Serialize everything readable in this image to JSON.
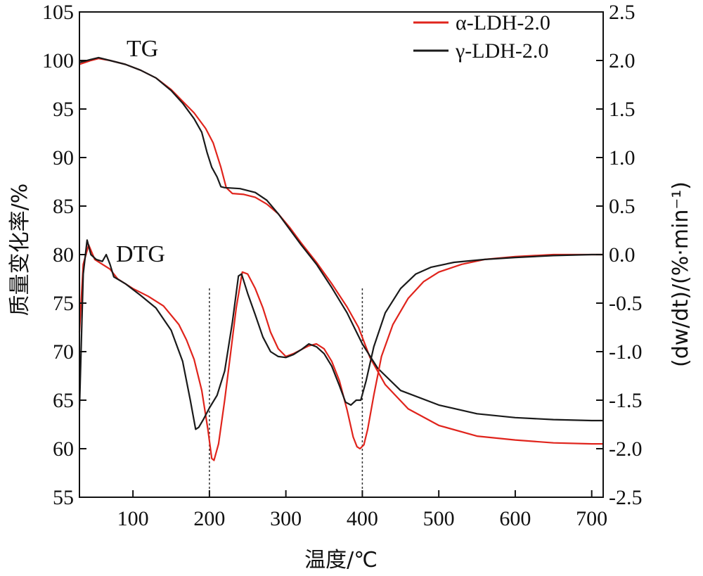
{
  "chart_data": {
    "type": "line",
    "xlabel": "温度/℃",
    "ylabel_left": "质量变化率/%",
    "ylabel_right": "(dw/dt)/(%·min⁻¹)",
    "xlim": [
      30,
      715
    ],
    "xticks": [
      "100",
      "200",
      "300",
      "400",
      "500",
      "600",
      "700"
    ],
    "ylim_left": [
      55,
      105
    ],
    "yticks_left": [
      "105",
      "100",
      "95",
      "90",
      "85",
      "80",
      "75",
      "70",
      "65",
      "60",
      "55"
    ],
    "ylim_right": [
      -2.5,
      2.5
    ],
    "yticks_right": [
      "2.5",
      "2.0",
      "1.5",
      "1.0",
      "0.5",
      "0.0",
      "-0.5",
      "-1.0",
      "-1.5",
      "-2.0",
      "-2.5"
    ],
    "annotations": [
      "TG",
      "DTG"
    ],
    "vlines": [
      200,
      400
    ],
    "legend": {
      "position": "top-right"
    },
    "series": [
      {
        "name": "α-LDH-2.0",
        "color": "#e0241c",
        "curve": "TG",
        "axis": "left",
        "x": [
          30,
          45,
          55,
          70,
          90,
          110,
          130,
          150,
          165,
          180,
          195,
          205,
          215,
          222,
          230,
          245,
          260,
          275,
          290,
          305,
          320,
          340,
          360,
          380,
          395,
          410,
          430,
          460,
          500,
          550,
          600,
          650,
          700,
          715
        ],
        "y": [
          99.6,
          100.0,
          100.2,
          100.0,
          99.6,
          99.0,
          98.2,
          97.0,
          95.8,
          94.6,
          93.0,
          91.5,
          89.0,
          86.9,
          86.3,
          86.2,
          85.9,
          85.2,
          84.2,
          82.8,
          81.2,
          79.2,
          77.0,
          74.6,
          72.5,
          69.4,
          66.6,
          64.1,
          62.4,
          61.3,
          60.9,
          60.6,
          60.5,
          60.5
        ]
      },
      {
        "name": "γ-LDH-2.0",
        "color": "#1a1a1a",
        "curve": "TG",
        "axis": "left",
        "x": [
          30,
          45,
          55,
          70,
          90,
          110,
          130,
          150,
          165,
          180,
          190,
          197,
          203,
          210,
          215,
          220,
          240,
          260,
          275,
          290,
          305,
          320,
          340,
          360,
          380,
          400,
          420,
          450,
          500,
          550,
          600,
          650,
          700,
          715
        ],
        "y": [
          99.8,
          100.1,
          100.3,
          100.0,
          99.6,
          99.0,
          98.2,
          96.9,
          95.6,
          94.0,
          92.6,
          90.5,
          89.0,
          88.0,
          87.0,
          86.9,
          86.8,
          86.4,
          85.6,
          84.2,
          82.6,
          81.0,
          79.0,
          76.6,
          74.0,
          70.8,
          68.3,
          66.0,
          64.5,
          63.6,
          63.2,
          63.0,
          62.9,
          62.9
        ]
      },
      {
        "name": "α-LDH-2.0",
        "color": "#e0241c",
        "curve": "DTG",
        "axis": "right",
        "x": [
          30,
          35,
          42,
          50,
          60,
          70,
          80,
          100,
          120,
          140,
          160,
          170,
          180,
          190,
          198,
          203,
          206,
          212,
          220,
          228,
          235,
          243,
          250,
          260,
          270,
          280,
          290,
          300,
          310,
          320,
          330,
          340,
          350,
          360,
          370,
          380,
          388,
          393,
          397,
          402,
          407,
          415,
          425,
          440,
          460,
          480,
          500,
          530,
          560,
          600,
          650,
          700,
          715
        ],
        "y": [
          -0.8,
          -0.1,
          0.1,
          -0.05,
          -0.1,
          -0.15,
          -0.25,
          -0.35,
          -0.43,
          -0.53,
          -0.72,
          -0.88,
          -1.08,
          -1.4,
          -1.8,
          -2.1,
          -2.12,
          -1.95,
          -1.5,
          -1.0,
          -0.55,
          -0.18,
          -0.2,
          -0.35,
          -0.55,
          -0.8,
          -0.97,
          -1.05,
          -1.02,
          -0.98,
          -0.94,
          -0.92,
          -0.97,
          -1.1,
          -1.3,
          -1.6,
          -1.88,
          -1.98,
          -2.0,
          -1.96,
          -1.8,
          -1.45,
          -1.05,
          -0.72,
          -0.45,
          -0.28,
          -0.18,
          -0.1,
          -0.05,
          -0.02,
          0.0,
          0.0,
          0.0
        ]
      },
      {
        "name": "γ-LDH-2.0",
        "color": "#1a1a1a",
        "curve": "DTG",
        "axis": "right",
        "x": [
          30,
          35,
          40,
          45,
          52,
          60,
          65,
          70,
          75,
          90,
          110,
          130,
          150,
          165,
          175,
          182,
          186,
          192,
          200,
          210,
          220,
          230,
          238,
          242,
          250,
          260,
          270,
          280,
          290,
          300,
          310,
          320,
          330,
          340,
          350,
          360,
          370,
          378,
          385,
          392,
          398,
          405,
          415,
          430,
          450,
          470,
          490,
          520,
          560,
          600,
          650,
          700,
          715
        ],
        "y": [
          -1.6,
          -0.2,
          0.15,
          0.0,
          -0.05,
          -0.07,
          0.0,
          -0.1,
          -0.23,
          -0.3,
          -0.42,
          -0.55,
          -0.78,
          -1.1,
          -1.5,
          -1.8,
          -1.78,
          -1.7,
          -1.58,
          -1.45,
          -1.2,
          -0.7,
          -0.22,
          -0.2,
          -0.4,
          -0.62,
          -0.85,
          -1.0,
          -1.05,
          -1.06,
          -1.03,
          -0.98,
          -0.92,
          -0.95,
          -1.02,
          -1.15,
          -1.35,
          -1.52,
          -1.55,
          -1.5,
          -1.5,
          -1.3,
          -0.95,
          -0.6,
          -0.35,
          -0.2,
          -0.13,
          -0.08,
          -0.05,
          -0.03,
          -0.01,
          0.0,
          0.0
        ]
      }
    ]
  }
}
